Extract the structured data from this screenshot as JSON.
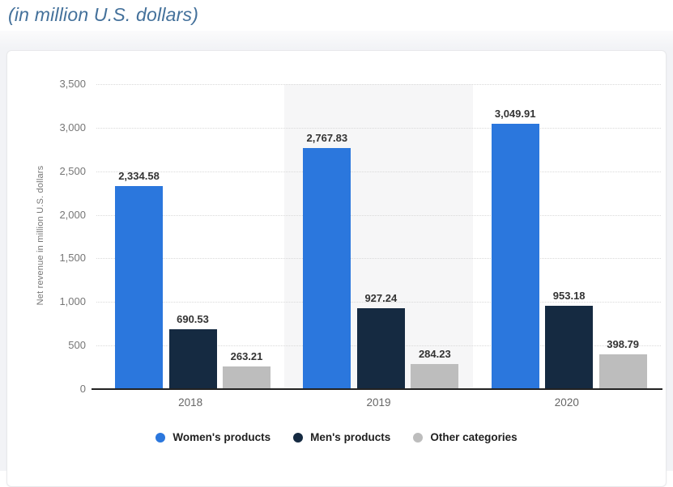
{
  "header": {
    "subtitle": "(in million U.S. dollars)"
  },
  "colors": {
    "subtitle_text": "#44719b",
    "page_background": "#f2f3f6",
    "header_background": "#ffffff",
    "card_background": "#ffffff",
    "card_border": "#e8e9eb",
    "grid_line": "#d9d9d9",
    "axis_line": "#222222",
    "tick_text": "#767676",
    "category_text": "#666666",
    "data_label_text": "#333333",
    "legend_text": "#1f1f1f",
    "column_band": "#f6f6f7",
    "womens_products": "#2b77dd",
    "mens_products": "#152a41",
    "other_categories": "#bdbdbd"
  },
  "chart_data": {
    "type": "bar",
    "title": "(in million U.S. dollars)",
    "xlabel": "",
    "ylabel": "Net revenue in million U.S. dollars",
    "categories": [
      "2018",
      "2019",
      "2020"
    ],
    "series": [
      {
        "name": "Women's products",
        "color": "#2b77dd",
        "values": [
          2334.58,
          2767.83,
          3049.91
        ],
        "labels": [
          "2,334.58",
          "2,767.83",
          "3,049.91"
        ]
      },
      {
        "name": "Men's products",
        "color": "#152a41",
        "values": [
          690.53,
          927.24,
          953.18
        ],
        "labels": [
          "690.53",
          "927.24",
          "953.18"
        ]
      },
      {
        "name": "Other categories",
        "color": "#bdbdbd",
        "values": [
          263.21,
          284.23,
          398.79
        ],
        "labels": [
          "263.21",
          "284.23",
          "398.79"
        ]
      }
    ],
    "ylim": [
      0,
      3500
    ],
    "ytick_step": 500,
    "yticks": [
      "0",
      "500",
      "1,000",
      "1,500",
      "2,000",
      "2,500",
      "3,000",
      "3,500"
    ],
    "grid": "on",
    "legend_position": "bottom",
    "highlighted_category_index": 1
  }
}
